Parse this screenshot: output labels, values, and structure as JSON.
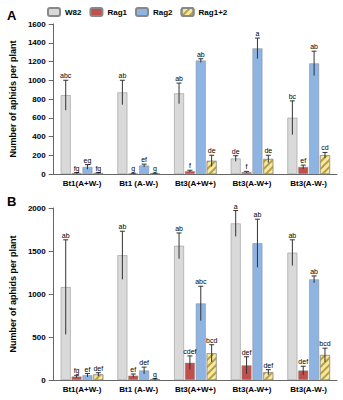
{
  "chart_data": [
    {
      "type": "bar",
      "title": "A",
      "y_label": "Number of aphids per plant",
      "categories": [
        "Bt1(A+W-)",
        "Bt1 (A-W-)",
        "Bt3(A+W+)",
        "Bt3(A-W+)",
        "Bt3(A-W-)"
      ],
      "legend": "top-left",
      "grid": false,
      "ylim": [
        0,
        1600
      ],
      "yticks": [
        0,
        200,
        400,
        600,
        800,
        1000,
        1200,
        1400,
        1600
      ],
      "series": [
        {
          "name": "W82",
          "color": "#d9d9d9",
          "values": [
            840,
            870,
            860,
            165,
            600
          ],
          "errors": [
            160,
            130,
            110,
            30,
            180
          ],
          "annotations": [
            "abc",
            "ab",
            "ab",
            "de",
            "bc"
          ]
        },
        {
          "name": "Rag1",
          "color": "#c0504d",
          "values": [
            10,
            5,
            30,
            20,
            75
          ],
          "errors": [
            5,
            3,
            10,
            8,
            20
          ],
          "annotations": [
            "fg",
            "g",
            "f",
            "f",
            "ef"
          ]
        },
        {
          "name": "Rag2",
          "color": "#8eb4e3",
          "values": [
            75,
            90,
            1210,
            1340,
            1180
          ],
          "errors": [
            25,
            15,
            20,
            110,
            130
          ],
          "annotations": [
            "eg",
            "ef",
            "ab",
            "a",
            "ab"
          ]
        },
        {
          "name": "Rag1+2",
          "color": "#f6e8a8",
          "marker": "hatch",
          "values": [
            10,
            5,
            140,
            160,
            200
          ],
          "errors": [
            5,
            3,
            60,
            40,
            30
          ],
          "annotations": [
            "fg",
            "g",
            "de",
            "de",
            "cd"
          ]
        }
      ]
    },
    {
      "type": "bar",
      "title": "B",
      "y_label": "Number of aphids per plant",
      "categories": [
        "Bt1(A+W-)",
        "Bt1 (A-W-)",
        "Bt3(A+W+)",
        "Bt3(A-W+)",
        "Bt3(A-W-)"
      ],
      "grid": false,
      "ylim": [
        0,
        2000
      ],
      "yticks": [
        0,
        500,
        1000,
        1500,
        2000
      ],
      "series": [
        {
          "name": "W82",
          "color": "#d9d9d9",
          "values": [
            1080,
            1450,
            1560,
            1820,
            1480
          ],
          "errors": [
            550,
            280,
            150,
            150,
            150
          ],
          "annotations": [
            "ab",
            "ab",
            "ab",
            "a",
            "ab"
          ]
        },
        {
          "name": "Rag1",
          "color": "#c0504d",
          "values": [
            40,
            50,
            200,
            170,
            110
          ],
          "errors": [
            15,
            20,
            80,
            100,
            50
          ],
          "annotations": [
            "fg",
            "ef",
            "cdef",
            "def",
            "def"
          ]
        },
        {
          "name": "Rag2",
          "color": "#8eb4e3",
          "values": [
            55,
            110,
            890,
            1590,
            1170
          ],
          "errors": [
            20,
            40,
            200,
            280,
            40
          ],
          "annotations": [
            "ef",
            "def",
            "abc",
            "ab",
            "ab"
          ]
        },
        {
          "name": "Rag1+2",
          "color": "#f6e8a8",
          "marker": "hatch",
          "values": [
            65,
            10,
            310,
            90,
            290
          ],
          "errors": [
            20,
            5,
            100,
            30,
            80
          ],
          "annotations": [
            "def",
            "g",
            "bcd",
            "def",
            "bcd"
          ]
        }
      ]
    }
  ]
}
